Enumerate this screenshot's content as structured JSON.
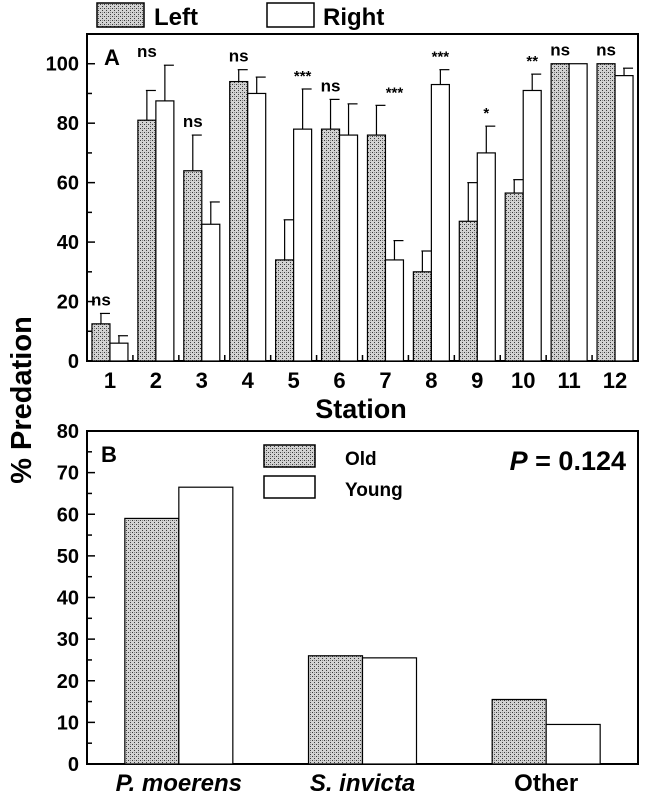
{
  "y_axis_label": "% Predation",
  "chart_data": [
    {
      "panel": "A",
      "type": "bar",
      "xlabel": "Station",
      "categories": [
        "1",
        "2",
        "3",
        "4",
        "5",
        "6",
        "7",
        "8",
        "9",
        "10",
        "11",
        "12"
      ],
      "ylim": [
        0,
        110
      ],
      "yticks": [
        0,
        20,
        40,
        60,
        80,
        100
      ],
      "legend": "top-left",
      "series": [
        {
          "name": "Left",
          "fill": "stipple",
          "values": [
            12.5,
            81,
            64,
            94,
            34,
            78,
            76,
            30,
            47,
            56.5,
            100,
            100
          ],
          "errors": [
            3.5,
            10,
            12,
            4,
            13.5,
            10,
            10,
            7,
            13,
            4.5,
            0,
            0
          ]
        },
        {
          "name": "Right",
          "fill": "white",
          "values": [
            6,
            87.5,
            46,
            90,
            78,
            76,
            34,
            93,
            70,
            91,
            100,
            96
          ],
          "errors": [
            2.5,
            12,
            7.5,
            5.5,
            13.5,
            10.5,
            6.5,
            5,
            9,
            5.5,
            0,
            2.5
          ]
        }
      ],
      "annotations": [
        "ns",
        "ns",
        "ns",
        "ns",
        "***",
        "ns",
        "***",
        "***",
        "*",
        "**",
        "ns",
        "ns"
      ]
    },
    {
      "panel": "B",
      "type": "bar",
      "categories": [
        "P. moerens",
        "S. invicta",
        "Other"
      ],
      "ylim": [
        0,
        80
      ],
      "yticks": [
        0,
        10,
        20,
        30,
        40,
        50,
        60,
        70,
        80
      ],
      "legend": "top-center",
      "stat_prefix": "P",
      "stat_text": " = 0.124",
      "series": [
        {
          "name": "Old",
          "fill": "stipple",
          "values": [
            59,
            26,
            15.5
          ]
        },
        {
          "name": "Young",
          "fill": "white",
          "values": [
            66.5,
            25.5,
            9.5
          ]
        }
      ]
    }
  ]
}
